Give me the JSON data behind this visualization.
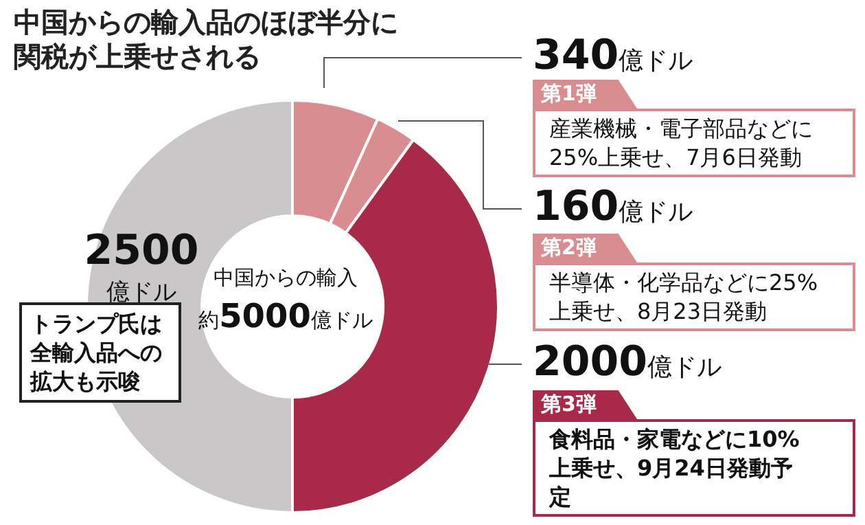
{
  "chart_data": {
    "type": "donut",
    "title": "中国からの輸入品のほぼ半分に関税が上乗せされる",
    "categories": [
      "第1弾",
      "第2弾",
      "第3弾",
      null
    ],
    "values": [
      340,
      160,
      2000,
      2500
    ],
    "colors": [
      "#d98d91",
      "#d98d91",
      "#a8294a",
      "#c9c7c7"
    ],
    "value_labels": [
      "340億ドル",
      "160億ドル",
      "2000億ドル",
      "2500億ドル"
    ],
    "legend": false,
    "annotations": [
      "産業機械・電子部品などに25%上乗せ、7月6日発動",
      "半導体・化学品などに25%上乗せ、8月23日発動",
      "食料品・家電などに10%上乗せ、9月24日発動予定",
      "中国からの輸入約5000億ドル",
      "トランプ氏は全輸入品への拡大も示唆"
    ]
  }
}
